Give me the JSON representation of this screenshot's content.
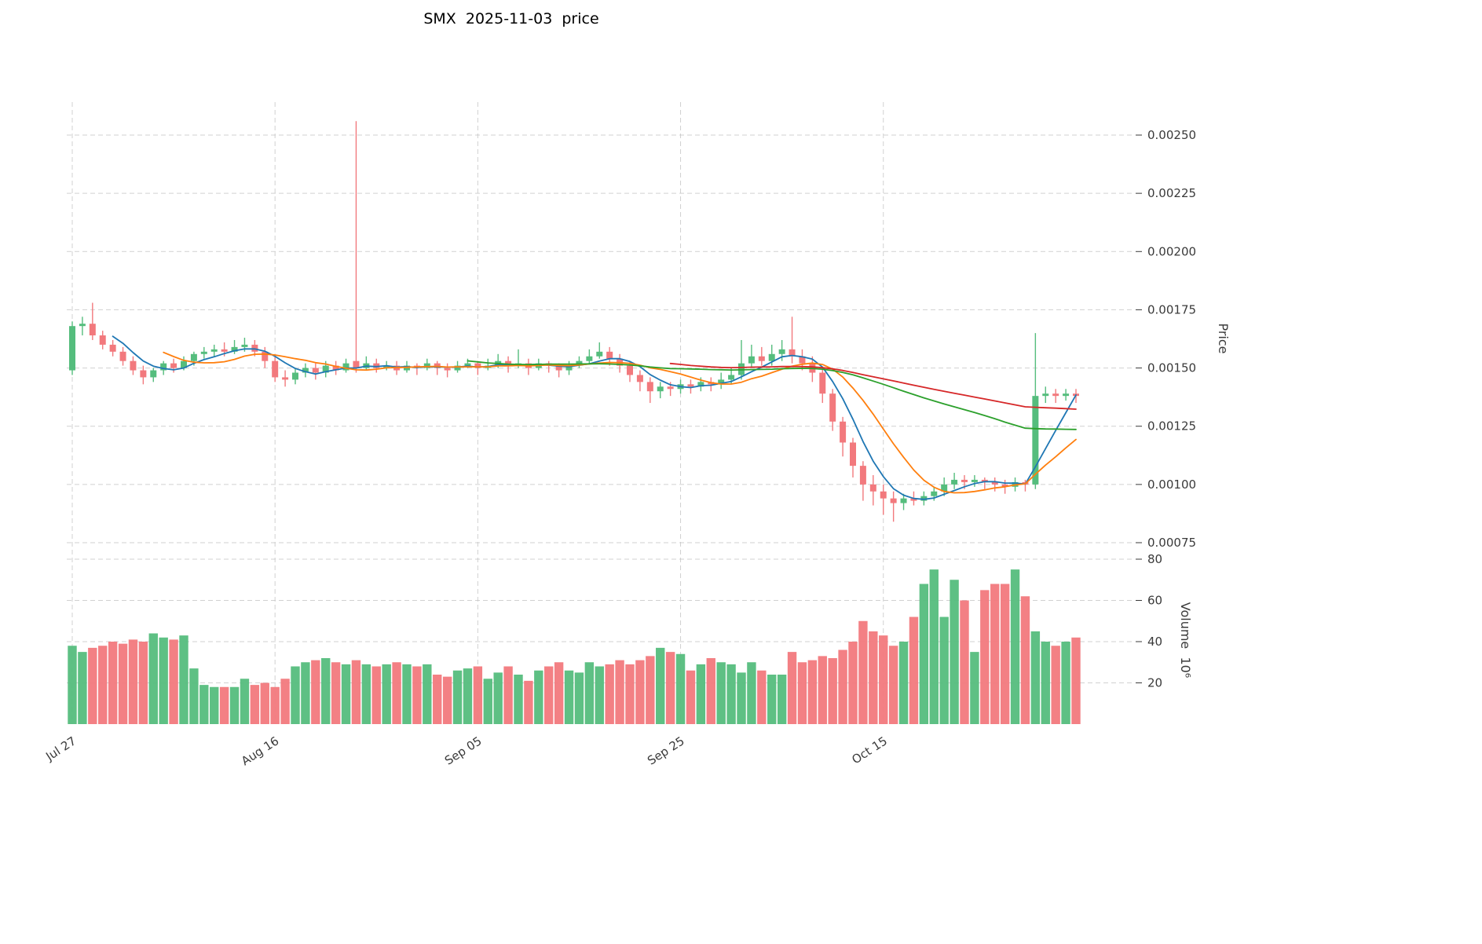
{
  "chart_data": {
    "type": "candlestick",
    "title": "SMX  2025-11-03  price",
    "grid": "dashed",
    "legend": "none",
    "price_axis": {
      "label": "Price",
      "side": "right",
      "ticks": [
        0.00075,
        0.001,
        0.00125,
        0.0015,
        0.00175,
        0.002,
        0.00225,
        0.0025
      ],
      "range": [
        0.00073,
        0.00264
      ]
    },
    "volume_axis": {
      "label": "Volume  10⁶",
      "side": "right",
      "unit": "millions",
      "ticks": [
        20,
        40,
        60,
        80
      ],
      "range": [
        0,
        84
      ]
    },
    "x_axis": {
      "tick_labels": [
        "Jul 27",
        "Aug 16",
        "Sep 05",
        "Sep 25",
        "Oct 15"
      ],
      "tick_candle_indices": [
        0,
        20,
        40,
        60,
        80
      ],
      "candle_count": 100
    },
    "moving_average_windows": [
      5,
      10,
      40,
      60
    ],
    "colors": {
      "up": "#55bd7d",
      "down": "#f2797d",
      "ma": [
        "#1f77b4",
        "#ff7f0e",
        "#2ca02c",
        "#d62728"
      ],
      "grid": "#c9c9c9",
      "text": "#3a3a3a",
      "background": "#ffffff"
    },
    "candles_format": [
      "open",
      "high",
      "low",
      "close",
      "volume_millions"
    ],
    "candles": [
      [
        0.00149,
        0.0017,
        0.00147,
        0.00168,
        38
      ],
      [
        0.00168,
        0.00172,
        0.00164,
        0.00169,
        35
      ],
      [
        0.00169,
        0.00178,
        0.00162,
        0.00164,
        37
      ],
      [
        0.00164,
        0.00166,
        0.00158,
        0.0016,
        38
      ],
      [
        0.0016,
        0.00162,
        0.00155,
        0.00157,
        40
      ],
      [
        0.00157,
        0.00159,
        0.00151,
        0.00153,
        39
      ],
      [
        0.00153,
        0.00155,
        0.00147,
        0.00149,
        41
      ],
      [
        0.00149,
        0.00151,
        0.00143,
        0.00146,
        40
      ],
      [
        0.00146,
        0.0015,
        0.00144,
        0.00149,
        44
      ],
      [
        0.00149,
        0.00153,
        0.00147,
        0.00152,
        42
      ],
      [
        0.00152,
        0.00154,
        0.00148,
        0.0015,
        41
      ],
      [
        0.0015,
        0.00155,
        0.00149,
        0.00153,
        43
      ],
      [
        0.00153,
        0.00157,
        0.00151,
        0.00156,
        27
      ],
      [
        0.00156,
        0.00159,
        0.00154,
        0.00157,
        19
      ],
      [
        0.00157,
        0.0016,
        0.00155,
        0.00158,
        18
      ],
      [
        0.00158,
        0.00161,
        0.00155,
        0.00157,
        18
      ],
      [
        0.00157,
        0.00162,
        0.00156,
        0.00159,
        18
      ],
      [
        0.00159,
        0.00163,
        0.00157,
        0.0016,
        22
      ],
      [
        0.0016,
        0.00162,
        0.00155,
        0.00157,
        19
      ],
      [
        0.00157,
        0.00159,
        0.0015,
        0.00153,
        20
      ],
      [
        0.00153,
        0.00155,
        0.00144,
        0.00146,
        18
      ],
      [
        0.00146,
        0.00149,
        0.00142,
        0.00145,
        22
      ],
      [
        0.00145,
        0.0015,
        0.00143,
        0.00148,
        28
      ],
      [
        0.00148,
        0.00152,
        0.00146,
        0.0015,
        30
      ],
      [
        0.0015,
        0.00152,
        0.00145,
        0.00148,
        31
      ],
      [
        0.00148,
        0.00153,
        0.00146,
        0.00151,
        32
      ],
      [
        0.00151,
        0.00153,
        0.00147,
        0.00149,
        30
      ],
      [
        0.00149,
        0.00154,
        0.00148,
        0.00152,
        29
      ],
      [
        0.00153,
        0.00256,
        0.00148,
        0.0015,
        31
      ],
      [
        0.0015,
        0.00155,
        0.00149,
        0.00152,
        29
      ],
      [
        0.00152,
        0.00154,
        0.00148,
        0.0015,
        28
      ],
      [
        0.0015,
        0.00153,
        0.00149,
        0.00151,
        29
      ],
      [
        0.00151,
        0.00153,
        0.00147,
        0.00149,
        30
      ],
      [
        0.00149,
        0.00153,
        0.00148,
        0.00151,
        29
      ],
      [
        0.00151,
        0.00152,
        0.00147,
        0.0015,
        28
      ],
      [
        0.0015,
        0.00154,
        0.00149,
        0.00152,
        29
      ],
      [
        0.00152,
        0.00153,
        0.00147,
        0.0015,
        24
      ],
      [
        0.0015,
        0.00152,
        0.00146,
        0.00149,
        23
      ],
      [
        0.00149,
        0.00153,
        0.00148,
        0.00151,
        26
      ],
      [
        0.00151,
        0.00154,
        0.0015,
        0.00152,
        27
      ],
      [
        0.00152,
        0.00153,
        0.00147,
        0.0015,
        28
      ],
      [
        0.0015,
        0.00154,
        0.00149,
        0.00151,
        22
      ],
      [
        0.00151,
        0.00156,
        0.0015,
        0.00153,
        25
      ],
      [
        0.00153,
        0.00155,
        0.00148,
        0.00151,
        28
      ],
      [
        0.00151,
        0.00158,
        0.0015,
        0.00152,
        24
      ],
      [
        0.00152,
        0.00154,
        0.00147,
        0.0015,
        21
      ],
      [
        0.0015,
        0.00154,
        0.00149,
        0.00152,
        26
      ],
      [
        0.00152,
        0.00153,
        0.00148,
        0.00151,
        28
      ],
      [
        0.00151,
        0.00152,
        0.00146,
        0.00149,
        30
      ],
      [
        0.00149,
        0.00153,
        0.00147,
        0.00151,
        26
      ],
      [
        0.00151,
        0.00155,
        0.0015,
        0.00153,
        25
      ],
      [
        0.00153,
        0.00158,
        0.00152,
        0.00155,
        30
      ],
      [
        0.00155,
        0.00161,
        0.00154,
        0.00157,
        28
      ],
      [
        0.00157,
        0.00159,
        0.00151,
        0.00154,
        29
      ],
      [
        0.00154,
        0.00156,
        0.00148,
        0.00151,
        31
      ],
      [
        0.00151,
        0.00153,
        0.00144,
        0.00147,
        29
      ],
      [
        0.00147,
        0.00149,
        0.0014,
        0.00144,
        31
      ],
      [
        0.00144,
        0.00146,
        0.00135,
        0.0014,
        33
      ],
      [
        0.0014,
        0.00144,
        0.00137,
        0.00142,
        37
      ],
      [
        0.00142,
        0.00144,
        0.00138,
        0.00141,
        35
      ],
      [
        0.00141,
        0.00145,
        0.00139,
        0.00143,
        34
      ],
      [
        0.00143,
        0.00145,
        0.00139,
        0.00142,
        26
      ],
      [
        0.00142,
        0.00146,
        0.0014,
        0.00144,
        29
      ],
      [
        0.00144,
        0.00146,
        0.0014,
        0.00143,
        32
      ],
      [
        0.00143,
        0.00148,
        0.00141,
        0.00145,
        30
      ],
      [
        0.00145,
        0.0015,
        0.00143,
        0.00147,
        29
      ],
      [
        0.00147,
        0.00162,
        0.00145,
        0.00152,
        25
      ],
      [
        0.00152,
        0.0016,
        0.0015,
        0.00155,
        30
      ],
      [
        0.00155,
        0.00159,
        0.00151,
        0.00153,
        26
      ],
      [
        0.00153,
        0.0016,
        0.00151,
        0.00156,
        24
      ],
      [
        0.00156,
        0.00162,
        0.00153,
        0.00158,
        24
      ],
      [
        0.00158,
        0.00172,
        0.00152,
        0.00155,
        35
      ],
      [
        0.00155,
        0.00158,
        0.00149,
        0.00152,
        30
      ],
      [
        0.00152,
        0.00155,
        0.00144,
        0.00148,
        31
      ],
      [
        0.00148,
        0.0015,
        0.00135,
        0.00139,
        33
      ],
      [
        0.00139,
        0.00141,
        0.00123,
        0.00127,
        32
      ],
      [
        0.00127,
        0.00129,
        0.00112,
        0.00118,
        36
      ],
      [
        0.00118,
        0.0012,
        0.00103,
        0.00108,
        40
      ],
      [
        0.00108,
        0.0011,
        0.00093,
        0.001,
        50
      ],
      [
        0.001,
        0.00104,
        0.00091,
        0.00097,
        45
      ],
      [
        0.00097,
        0.001,
        0.00087,
        0.00094,
        43
      ],
      [
        0.00094,
        0.00097,
        0.00084,
        0.00092,
        38
      ],
      [
        0.00092,
        0.00096,
        0.00089,
        0.00094,
        40
      ],
      [
        0.00094,
        0.00097,
        0.00091,
        0.00093,
        52
      ],
      [
        0.00093,
        0.00097,
        0.00091,
        0.00095,
        68
      ],
      [
        0.00095,
        0.00099,
        0.00093,
        0.00097,
        75
      ],
      [
        0.00097,
        0.00103,
        0.00095,
        0.001,
        52
      ],
      [
        0.001,
        0.00105,
        0.00098,
        0.00102,
        70
      ],
      [
        0.00102,
        0.00104,
        0.00098,
        0.00101,
        60
      ],
      [
        0.00101,
        0.00104,
        0.00099,
        0.00102,
        35
      ],
      [
        0.00102,
        0.00103,
        0.00098,
        0.00101,
        65
      ],
      [
        0.00101,
        0.00103,
        0.00097,
        0.001,
        68
      ],
      [
        0.001,
        0.00102,
        0.00096,
        0.00099,
        68
      ],
      [
        0.00099,
        0.00103,
        0.00097,
        0.00101,
        75
      ],
      [
        0.00101,
        0.00102,
        0.00097,
        0.001,
        62
      ],
      [
        0.001,
        0.00165,
        0.00098,
        0.00138,
        45
      ],
      [
        0.00138,
        0.00142,
        0.00135,
        0.00139,
        40
      ],
      [
        0.00139,
        0.00141,
        0.00135,
        0.00138,
        38
      ],
      [
        0.00138,
        0.00141,
        0.00136,
        0.00139,
        40
      ],
      [
        0.00139,
        0.00141,
        0.00135,
        0.00138,
        42
      ]
    ]
  }
}
